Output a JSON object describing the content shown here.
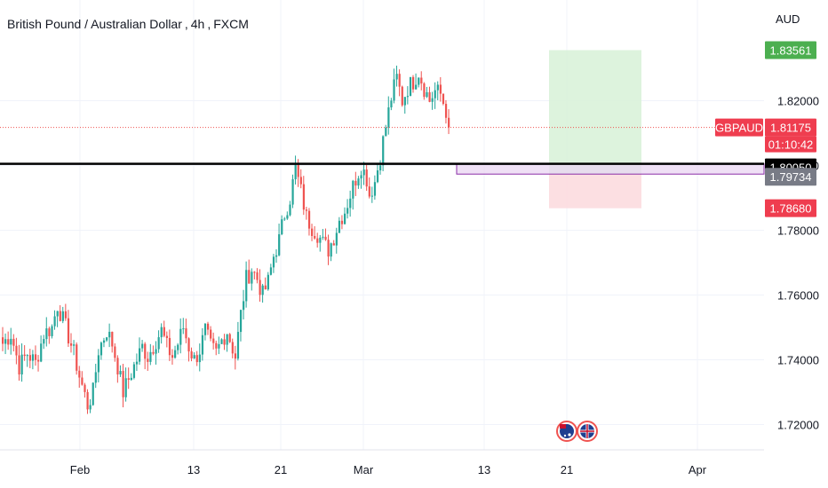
{
  "header": {
    "symbol_name": "British Pound / Australian Dollar",
    "interval": "4h",
    "exchange": "FXCM",
    "currency": "AUD"
  },
  "price_labels": {
    "take_profit": "1.83561",
    "symbol_tag": "GBPAUD",
    "last_price": "1.81175",
    "countdown": "01:10:42",
    "level_line": "1.80050",
    "entry": "1.79734",
    "stop_loss": "1.78680"
  },
  "colors": {
    "bull": "#26a69a",
    "bear": "#ef5350",
    "profit_zone": "#d9f2d9",
    "loss_zone": "#fcdcdf",
    "zone_fill": "#e9d6f2",
    "zone_border": "#8a2ca8",
    "take_profit_tag": "#4caf50",
    "last_price_tag": "#ef3d4f",
    "level_tag": "#000000",
    "entry_tag": "#787b86"
  },
  "icons": [
    "australia-flag-icon",
    "uk-flag-icon"
  ],
  "chart_data": {
    "type": "candlestick",
    "title": "British Pound / Australian Dollar, 4h, FXCM",
    "x_ticks": [
      "Feb",
      "13",
      "21",
      "Mar",
      "13",
      "21",
      "Apr"
    ],
    "y_ticks": [
      "1.72000",
      "1.74000",
      "1.76000",
      "1.78000",
      "1.80000",
      "1.82000"
    ],
    "ylim": [
      1.713,
      1.852
    ],
    "grid": true,
    "key_level": 1.8005,
    "supply_zone": [
      1.79734,
      1.8005
    ],
    "position": {
      "direction": "long",
      "entry": 1.79734,
      "take_profit": 1.83561,
      "stop_loss": 1.7868
    },
    "last_price": 1.81175,
    "close_path": [
      [
        0,
        1.745
      ],
      [
        3,
        1.748
      ],
      [
        6,
        1.738
      ],
      [
        9,
        1.742
      ],
      [
        12,
        1.739
      ],
      [
        15,
        1.748
      ],
      [
        18,
        1.75
      ],
      [
        20,
        1.757
      ],
      [
        23,
        1.75
      ],
      [
        26,
        1.742
      ],
      [
        28,
        1.735
      ],
      [
        31,
        1.726
      ],
      [
        33,
        1.73
      ],
      [
        35,
        1.743
      ],
      [
        38,
        1.749
      ],
      [
        40,
        1.745
      ],
      [
        42,
        1.738
      ],
      [
        44,
        1.73
      ],
      [
        46,
        1.734
      ],
      [
        49,
        1.74
      ],
      [
        51,
        1.744
      ],
      [
        53,
        1.741
      ],
      [
        56,
        1.746
      ],
      [
        58,
        1.749
      ],
      [
        60,
        1.744
      ],
      [
        62,
        1.741
      ],
      [
        64,
        1.745
      ],
      [
        66,
        1.75
      ],
      [
        68,
        1.744
      ],
      [
        70,
        1.74
      ],
      [
        72,
        1.743
      ],
      [
        74,
        1.749
      ],
      [
        76,
        1.744
      ],
      [
        78,
        1.742
      ],
      [
        80,
        1.746
      ],
      [
        82,
        1.749
      ],
      [
        85,
        1.741
      ],
      [
        87,
        1.754
      ],
      [
        89,
        1.765
      ],
      [
        91,
        1.768
      ],
      [
        93,
        1.765
      ],
      [
        95,
        1.76
      ],
      [
        97,
        1.764
      ],
      [
        99,
        1.772
      ],
      [
        101,
        1.777
      ],
      [
        103,
        1.785
      ],
      [
        105,
        1.79
      ],
      [
        107,
        1.799
      ],
      [
        109,
        1.792
      ],
      [
        111,
        1.784
      ],
      [
        113,
        1.781
      ],
      [
        115,
        1.779
      ],
      [
        117,
        1.776
      ],
      [
        119,
        1.774
      ],
      [
        121,
        1.778
      ],
      [
        123,
        1.783
      ],
      [
        125,
        1.786
      ],
      [
        127,
        1.791
      ],
      [
        129,
        1.796
      ],
      [
        131,
        1.8
      ],
      [
        133,
        1.796
      ],
      [
        134,
        1.791
      ],
      [
        136,
        1.795
      ],
      [
        138,
        1.803
      ],
      [
        140,
        1.812
      ],
      [
        142,
        1.821
      ],
      [
        144,
        1.827
      ],
      [
        146,
        1.82
      ],
      [
        148,
        1.824
      ],
      [
        150,
        1.826
      ],
      [
        152,
        1.829
      ],
      [
        154,
        1.824
      ],
      [
        156,
        1.82
      ],
      [
        158,
        1.823
      ],
      [
        160,
        1.822
      ],
      [
        162,
        1.817
      ],
      [
        163,
        1.81175
      ]
    ]
  }
}
